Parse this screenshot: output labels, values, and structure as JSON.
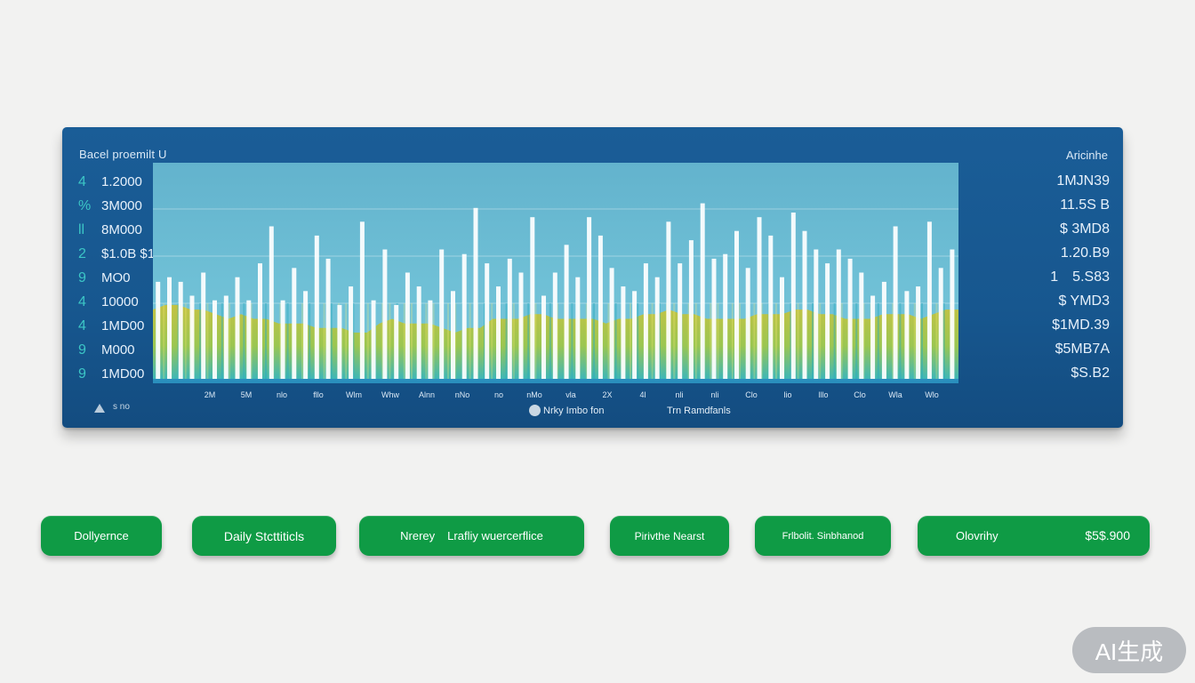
{
  "panel": {
    "title": "Bacel proemilt U",
    "right_title": "Aricinhe",
    "logo_text": "s no",
    "legend_1": "Nrky Imbo fon",
    "legend_2": "Trn Ramdfanls"
  },
  "left_axis": [
    {
      "idx": "4",
      "val": "1.2000"
    },
    {
      "idx": "%",
      "val": "3M000"
    },
    {
      "idx": "ll",
      "val": "8M000"
    },
    {
      "idx": "2",
      "val": "$1.0B $1"
    },
    {
      "idx": "9",
      "val": "MO0"
    },
    {
      "idx": "4",
      "val": "10000"
    },
    {
      "idx": "4",
      "val": "1MD00"
    },
    {
      "idx": "9",
      "val": "M000"
    },
    {
      "idx": "9",
      "val": "1MD00"
    }
  ],
  "right_axis": [
    "1MJN39",
    "11.5S B",
    "$ 3MD8",
    "1.20.B9",
    "1 5.S83",
    "$ YMD3",
    "$1MD.39",
    "$5MB7A",
    "$S.B2"
  ],
  "x_labels": [
    "2M",
    "5M",
    "nlo",
    "fllo",
    "Wlm",
    "Whw",
    "Alnn",
    "nNo",
    "no",
    "nMo",
    "vla",
    "2X",
    "4l",
    "nli",
    "nli",
    "Clo",
    "lio",
    "lllo",
    "Clo",
    "Wla",
    "Wlo"
  ],
  "chart_data": {
    "type": "bar",
    "title": "Bacel proemilt U",
    "series": [
      {
        "name": "white bars",
        "values": [
          21,
          22,
          21,
          18,
          23,
          17,
          18,
          22,
          17,
          25,
          33,
          17,
          24,
          19,
          31,
          26,
          16,
          20,
          34,
          17,
          28,
          16,
          23,
          20,
          17,
          28,
          19,
          27,
          37,
          25,
          20,
          26,
          23,
          35,
          18,
          23,
          29,
          22,
          35,
          31,
          24,
          20,
          19,
          25,
          22,
          34,
          25,
          30,
          38,
          26,
          27,
          32,
          24,
          35,
          31,
          22,
          36,
          32,
          28,
          25,
          28,
          26,
          23,
          18,
          21,
          33,
          19,
          20,
          34,
          24,
          28
        ]
      },
      {
        "name": "yellow-green area",
        "values": [
          15,
          16,
          16,
          15,
          15,
          14,
          13,
          14,
          13,
          13,
          12,
          12,
          12,
          11,
          11,
          11,
          10,
          10,
          12,
          13,
          12,
          12,
          12,
          11,
          10,
          11,
          11,
          13,
          13,
          13,
          14,
          14,
          13,
          13,
          13,
          13,
          12,
          13,
          13,
          14,
          14,
          15,
          14,
          14,
          13,
          13,
          13,
          13,
          14,
          14,
          14,
          15,
          15,
          14,
          14,
          13,
          13,
          13,
          14,
          14,
          14,
          13,
          14,
          15,
          15
        ]
      }
    ],
    "ylim": [
      0,
      46
    ]
  },
  "buttons": [
    {
      "label": "Dollyernce"
    },
    {
      "label": "Daily Stcttiticls"
    },
    {
      "label": "Nrerey",
      "sub": "Lrafliy wuercerflice"
    },
    {
      "label": "Pirivthe Nearst"
    },
    {
      "label": "Frlbolit. Sinbhanod"
    },
    {
      "label": "Olovrihy",
      "amount": "$5$.900"
    }
  ],
  "watermark": "AI生成",
  "colors": {
    "panel": "#17578f",
    "button": "#0f9b45",
    "plot": "#6fc0d6"
  }
}
